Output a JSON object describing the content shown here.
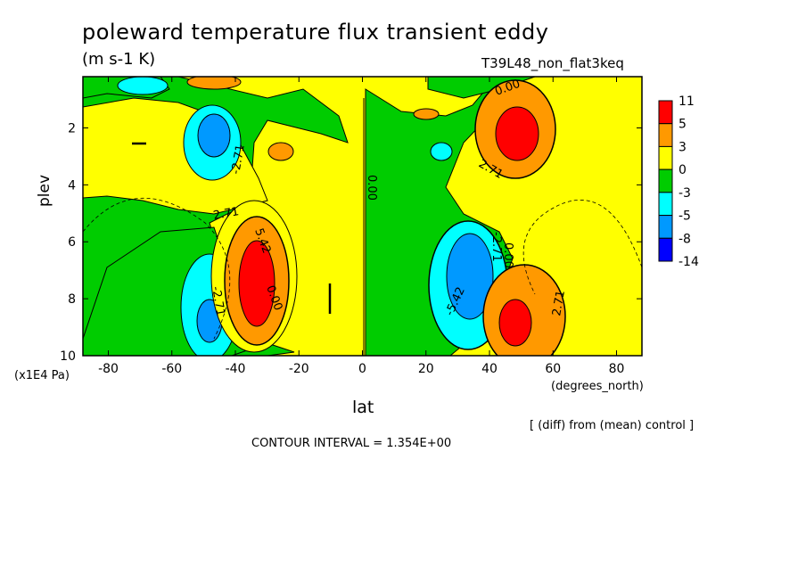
{
  "chart_data": {
    "type": "heatmap",
    "title": "poleward temperature flux transient eddy",
    "units": "(m s-1 K)",
    "run_name": "T39L48_non_flat3keq",
    "xlabel": "lat",
    "ylabel": "plev",
    "x_unit": "(degrees_north)",
    "y_unit": "(x1E4 Pa)",
    "xlim": [
      -88,
      88
    ],
    "ylim": [
      10,
      0.2
    ],
    "x_ticks": [
      -80,
      -60,
      -40,
      -20,
      0,
      20,
      40,
      60,
      80
    ],
    "y_ticks": [
      2,
      4,
      6,
      8,
      10
    ],
    "colorbar": {
      "levels": [
        "11",
        "5",
        "3",
        "0",
        "-3",
        "-5",
        "-8",
        "-14"
      ],
      "colors": [
        "#ff0000",
        "#ff9900",
        "#ffff00",
        "#00cc00",
        "#00ffff",
        "#0099ff",
        "#0000ff"
      ]
    },
    "contour_labels": [
      "0.00",
      "-2.71",
      "0.00",
      "2.71",
      "5.42",
      "-2.71",
      "0.00",
      "2.71",
      "-2.71",
      "-5.42",
      "0.00",
      "2.71"
    ],
    "contour_interval": "CONTOUR INTERVAL = 1.354E+00",
    "note": "[ (diff) from (mean) control ]",
    "features": [
      {
        "lat": -47,
        "plev": 2.2,
        "value": -8
      },
      {
        "lat": -48,
        "plev": 8.5,
        "value": -5
      },
      {
        "lat": -35,
        "plev": 7.0,
        "value": 11
      },
      {
        "lat": -30,
        "plev": 2.8,
        "value": 3
      },
      {
        "lat": 33,
        "plev": 7.0,
        "value": -8
      },
      {
        "lat": 46,
        "plev": 2.1,
        "value": 11
      },
      {
        "lat": 48,
        "plev": 8.8,
        "value": 11
      },
      {
        "lat": 30,
        "plev": 1.0,
        "value": -3
      }
    ]
  }
}
